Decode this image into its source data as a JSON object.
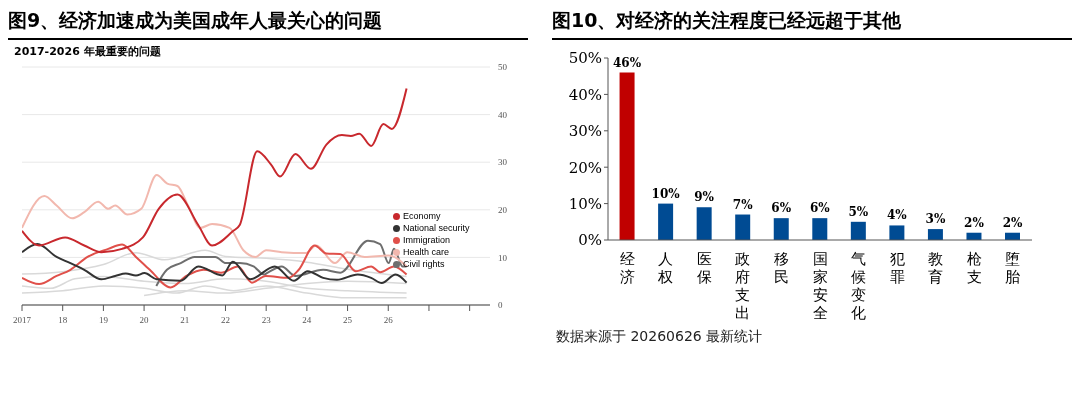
{
  "chart_data": [
    {
      "type": "line",
      "title": "图9、经济加速成为美国成年人最关心的问题",
      "subtitle": "2017-2026 年最重要的问题",
      "xlim": [
        2017,
        2028.5
      ],
      "xticks": [
        2017,
        {
          "value": 2018,
          "label": "18"
        },
        {
          "value": 2019,
          "label": "19"
        },
        {
          "value": 2020,
          "label": "20"
        },
        {
          "value": 2021,
          "label": "21"
        },
        {
          "value": 2022,
          "label": "22"
        },
        {
          "value": 2023,
          "label": "23"
        },
        {
          "value": 2024,
          "label": "24"
        },
        {
          "value": 2025,
          "label": "25"
        },
        {
          "value": 2026,
          "label": "26"
        },
        {
          "value": 2027,
          "label": null
        },
        {
          "value": 2028,
          "label": null
        }
      ],
      "ylim": [
        0,
        50
      ],
      "yticks": [
        0,
        10,
        20,
        30,
        40,
        50
      ],
      "grid": "y",
      "legend": "right",
      "marker": "none",
      "line_style": "solid",
      "series": [
        {
          "color": "#d9d9d9",
          "x": [
            2017,
            2018,
            2019,
            2019.8,
            2020.5,
            2021.5,
            2022,
            2023,
            2024,
            2025,
            2026.45
          ],
          "values": [
            6.5,
            7,
            8.5,
            11,
            9.5,
            11.5,
            10.2,
            9.8,
            9,
            7.5,
            6
          ]
        },
        {
          "color": "#d9d9d9",
          "x": [
            2017,
            2017.7,
            2018.3,
            2019,
            2020,
            2021,
            2022,
            2023,
            2024,
            2025,
            2026.45
          ],
          "values": [
            4,
            3.5,
            5.5,
            6,
            5,
            4.5,
            5.5,
            5,
            3.5,
            3,
            2.5
          ]
        },
        {
          "color": "#d9d9d9",
          "x": [
            2017,
            2018,
            2019,
            2020,
            2020.8,
            2021.5,
            2022.2,
            2023,
            2024,
            2025,
            2026.45
          ],
          "values": [
            2.5,
            3,
            4,
            3.5,
            2.5,
            4,
            3,
            4,
            2.5,
            1.5,
            1.5
          ]
        },
        {
          "color": "#d9d9d9",
          "x": [
            2020,
            2021,
            2022,
            2023,
            2024,
            2025,
            2026.45
          ],
          "values": [
            2,
            3,
            2.5,
            3.5,
            4.5,
            5,
            4.5
          ]
        },
        {
          "name": "Civil rights",
          "color": "#6e6e6e",
          "x": [
            2020.3,
            2020.56,
            2020.9,
            2021.24,
            2021.75,
            2022.01,
            2022.35,
            2022.69,
            2022.95,
            2023.04,
            2023.38,
            2023.72,
            2024.4,
            2024.82,
            2025.5,
            2025.8,
            2026.01,
            2026.14,
            2026.35,
            2026.45
          ],
          "values": [
            4,
            7.4,
            8.8,
            10.1,
            10.1,
            8.8,
            8.8,
            8.1,
            6.4,
            6.8,
            8.1,
            6.1,
            7.4,
            6.8,
            13.5,
            12.8,
            8.8,
            11.8,
            8.1,
            8.1
          ]
        },
        {
          "name": "Health care",
          "color": "#f2b8ae",
          "x": [
            2017,
            2017.55,
            2017.85,
            2018.23,
            2018.53,
            2018.87,
            2019.12,
            2019.29,
            2019.59,
            2019.93,
            2020.31,
            2020.57,
            2020.82,
            2021.08,
            2021.38,
            2021.67,
            2022.1,
            2022.44,
            2022.74,
            2023,
            2023.38,
            2023.97,
            2024.23,
            2024.69,
            2024.99,
            2025.42,
            2026.01,
            2026.45
          ],
          "values": [
            16.2,
            22.9,
            20.9,
            18.2,
            19.5,
            21.7,
            20.2,
            20.9,
            19,
            20.2,
            27.3,
            25.5,
            25,
            20.9,
            16.2,
            17,
            16.2,
            11.5,
            10.1,
            11.5,
            11.1,
            10.9,
            12.5,
            8.8,
            11.1,
            10.1,
            10.4,
            8.1
          ]
        },
        {
          "name": "Immigration",
          "color": "#e0504a",
          "x": [
            2017,
            2017.42,
            2017.85,
            2018.19,
            2018.61,
            2019.12,
            2019.46,
            2019.8,
            2020.14,
            2020.65,
            2021.04,
            2021.46,
            2021.89,
            2022.31,
            2022.65,
            2022.99,
            2023.55,
            2023.8,
            2024.19,
            2024.48,
            2024.82,
            2025.2,
            2025.58,
            2025.8,
            2026.14,
            2026.45
          ],
          "values": [
            5.7,
            4.4,
            6.1,
            7.4,
            10.1,
            11.8,
            12.7,
            10.1,
            7.4,
            3.7,
            6.1,
            7.4,
            6.8,
            8.1,
            4.7,
            6.1,
            5.7,
            7.4,
            12.5,
            10.8,
            10.7,
            7.1,
            8.1,
            6.9,
            8.1,
            6.4
          ]
        },
        {
          "name": "National security",
          "color": "#333333",
          "x": [
            2017,
            2017.38,
            2017.85,
            2018.19,
            2018.53,
            2018.95,
            2019.29,
            2019.55,
            2019.8,
            2020.01,
            2020.31,
            2020.9,
            2021.33,
            2021.92,
            2022.18,
            2022.61,
            2023.21,
            2023.68,
            2024.02,
            2024.4,
            2024.74,
            2025.25,
            2025.58,
            2025.84,
            2026.18,
            2026.45
          ],
          "values": [
            11.1,
            12.8,
            10.1,
            8.8,
            7.4,
            5.4,
            6.1,
            6.6,
            6.2,
            6.7,
            5.4,
            5.1,
            8.1,
            6.2,
            9.1,
            5.4,
            8.1,
            5.1,
            7.1,
            5.7,
            5.3,
            6.4,
            5.7,
            4.6,
            6.4,
            4.7
          ]
        },
        {
          "name": "Economy",
          "color": "#c8282d",
          "x": [
            2017,
            2017.42,
            2018.06,
            2018.53,
            2018.95,
            2019.46,
            2019.97,
            2020.36,
            2020.82,
            2021.33,
            2021.67,
            2022.18,
            2022.35,
            2022.78,
            2023.12,
            2023.34,
            2023.72,
            2024.1,
            2024.48,
            2024.86,
            2025.08,
            2025.29,
            2025.58,
            2025.88,
            2026.09,
            2026.45
          ],
          "values": [
            15.6,
            12.5,
            14.2,
            12.5,
            11.1,
            11.8,
            14.2,
            20.2,
            23.2,
            16.8,
            12.5,
            15.5,
            16.8,
            32.3,
            29.5,
            27,
            31.7,
            28.6,
            33.7,
            35.7,
            35.5,
            36,
            33.4,
            38,
            37,
            45.5
          ]
        }
      ]
    },
    {
      "type": "bar",
      "title": "图10、对经济的关注程度已经远超于其他",
      "categories": [
        "经济",
        "人权",
        "医保",
        "政府支出",
        "移民",
        "国家安全",
        "气候变化",
        "犯罪",
        "教育",
        "枪支",
        "堕胎"
      ],
      "values": [
        46,
        10,
        9,
        7,
        6,
        6,
        5,
        4,
        3,
        2,
        2
      ],
      "colors": [
        "#c00000",
        "#004b93",
        "#004b93",
        "#004b93",
        "#004b93",
        "#004b93",
        "#004b93",
        "#004b93",
        "#004b93",
        "#004b93",
        "#004b93"
      ],
      "value_labels": [
        "46%",
        "10%",
        "9%",
        "7%",
        "6%",
        "6%",
        "5%",
        "4%",
        "3%",
        "2%",
        "2%"
      ],
      "ylim": [
        0,
        50
      ],
      "yticks": [
        {
          "value": 0,
          "label": "0%"
        },
        {
          "value": 10,
          "label": "10%"
        },
        {
          "value": 20,
          "label": "20%"
        },
        {
          "value": 30,
          "label": "30%"
        },
        {
          "value": 40,
          "label": "40%"
        },
        {
          "value": 50,
          "label": "50%"
        }
      ],
      "grid": false,
      "legend": false,
      "annotations": [
        "数据来源于 20260626 最新统计"
      ]
    }
  ]
}
